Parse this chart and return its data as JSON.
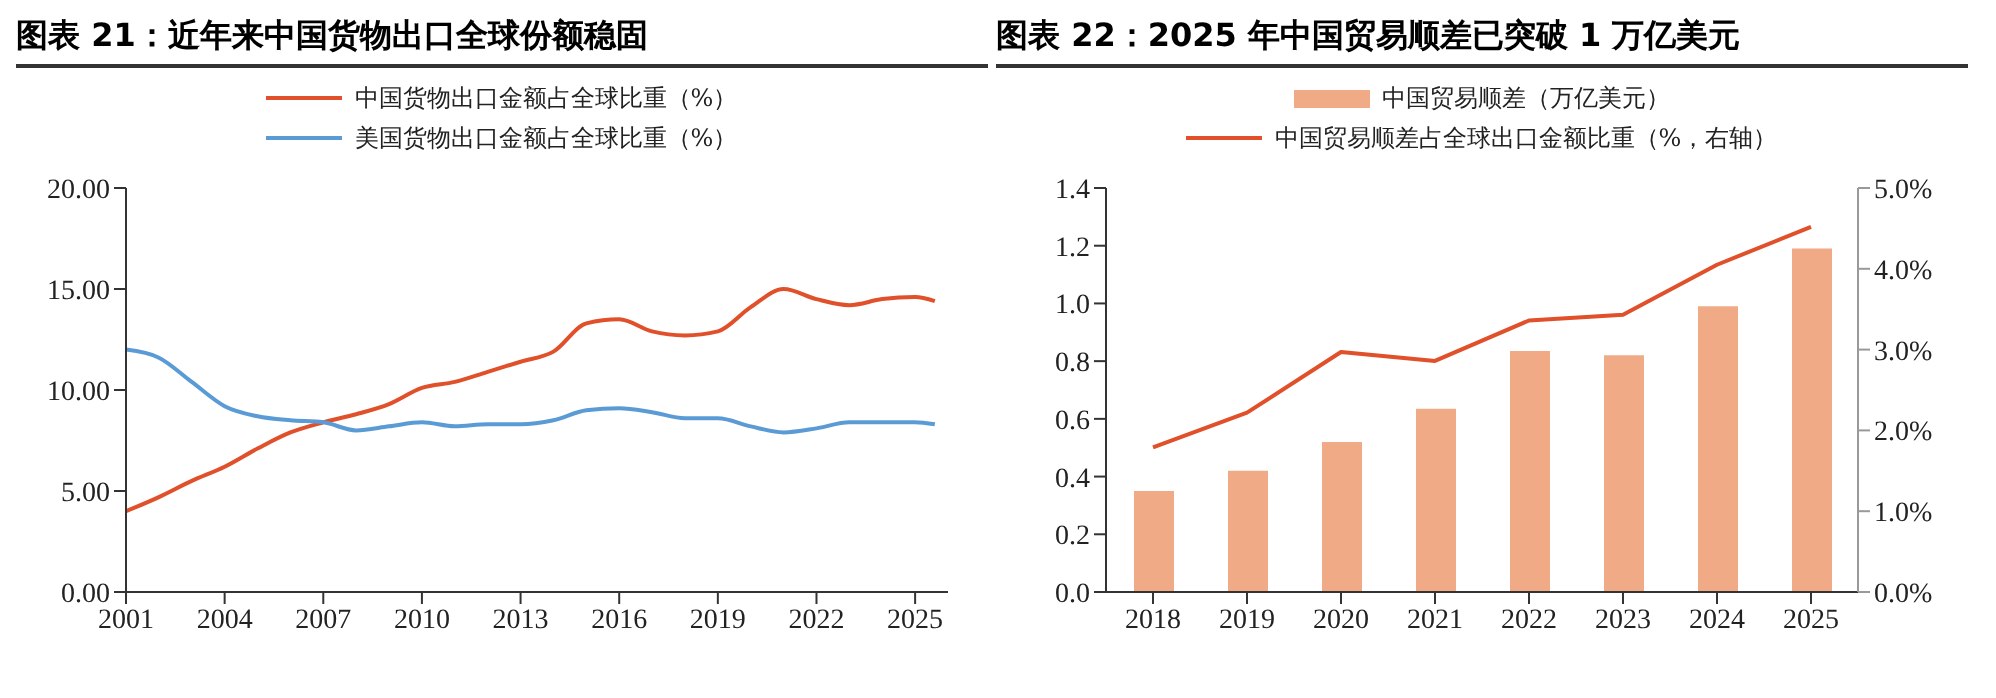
{
  "chart_data": [
    {
      "type": "line",
      "title": "图表 21：近年来中国货物出口全球份额稳固",
      "legend": "top",
      "x": [
        2001,
        2002,
        2003,
        2004,
        2005,
        2006,
        2007,
        2008,
        2009,
        2010,
        2011,
        2012,
        2013,
        2014,
        2015,
        2016,
        2017,
        2018,
        2019,
        2020,
        2021,
        2022,
        2023,
        2024,
        2025,
        2025.6
      ],
      "xlim": [
        2001,
        2026
      ],
      "xticks": [
        2001,
        2004,
        2007,
        2010,
        2013,
        2016,
        2019,
        2022,
        2025
      ],
      "ylim": [
        0,
        20
      ],
      "yticks": [
        {
          "value": 0,
          "label": "0.00"
        },
        {
          "value": 5,
          "label": "5.00"
        },
        {
          "value": 10,
          "label": "10.00"
        },
        {
          "value": 15,
          "label": "15.00"
        },
        {
          "value": 20,
          "label": "20.00"
        }
      ],
      "series": [
        {
          "name": "中国货物出口金额占全球比重（%）",
          "color": "#e0502a",
          "values": [
            4.0,
            4.7,
            5.5,
            6.2,
            7.1,
            7.9,
            8.4,
            8.8,
            9.3,
            10.1,
            10.4,
            10.9,
            11.4,
            11.9,
            13.3,
            13.5,
            12.9,
            12.7,
            12.9,
            14.1,
            15.0,
            14.5,
            14.2,
            14.5,
            14.6,
            14.4
          ]
        },
        {
          "name": "美国货物出口金额占全球比重（%）",
          "color": "#5b9bd5",
          "values": [
            12.0,
            11.6,
            10.4,
            9.2,
            8.7,
            8.5,
            8.4,
            8.0,
            8.2,
            8.4,
            8.2,
            8.3,
            8.3,
            8.5,
            9.0,
            9.1,
            8.9,
            8.6,
            8.6,
            8.2,
            7.9,
            8.1,
            8.4,
            8.4,
            8.4,
            8.3
          ]
        }
      ]
    },
    {
      "type": "bar",
      "title": "图表 22：2025 年中国贸易顺差已突破 1 万亿美元",
      "legend": "top",
      "categories": [
        "2018",
        "2019",
        "2020",
        "2021",
        "2022",
        "2023",
        "2024",
        "2025"
      ],
      "ylim": [
        0,
        1.4
      ],
      "yticks": [
        {
          "value": 0,
          "label": "0.0"
        },
        {
          "value": 0.2,
          "label": "0.2"
        },
        {
          "value": 0.4,
          "label": "0.4"
        },
        {
          "value": 0.6,
          "label": "0.6"
        },
        {
          "value": 0.8,
          "label": "0.8"
        },
        {
          "value": 1.0,
          "label": "1.0"
        },
        {
          "value": 1.2,
          "label": "1.2"
        },
        {
          "value": 1.4,
          "label": "1.4"
        }
      ],
      "y2lim": [
        0,
        5
      ],
      "y2ticks": [
        {
          "value": 0,
          "label": "0.0%"
        },
        {
          "value": 1,
          "label": "1.0%"
        },
        {
          "value": 2,
          "label": "2.0%"
        },
        {
          "value": 3,
          "label": "3.0%"
        },
        {
          "value": 4,
          "label": "4.0%"
        },
        {
          "value": 5,
          "label": "5.0%"
        }
      ],
      "series": [
        {
          "name": "中国贸易顺差（万亿美元）",
          "color": "#f0aa86",
          "values": [
            0.35,
            0.42,
            0.52,
            0.635,
            0.835,
            0.82,
            0.99,
            1.19
          ]
        },
        {
          "name": "中国贸易顺差占全球出口金额比重（%，右轴）",
          "type": "line",
          "axis": "y2",
          "color": "#e0502a",
          "values": [
            1.79,
            2.22,
            2.97,
            2.86,
            3.36,
            3.43,
            4.05,
            4.52
          ]
        }
      ]
    }
  ]
}
